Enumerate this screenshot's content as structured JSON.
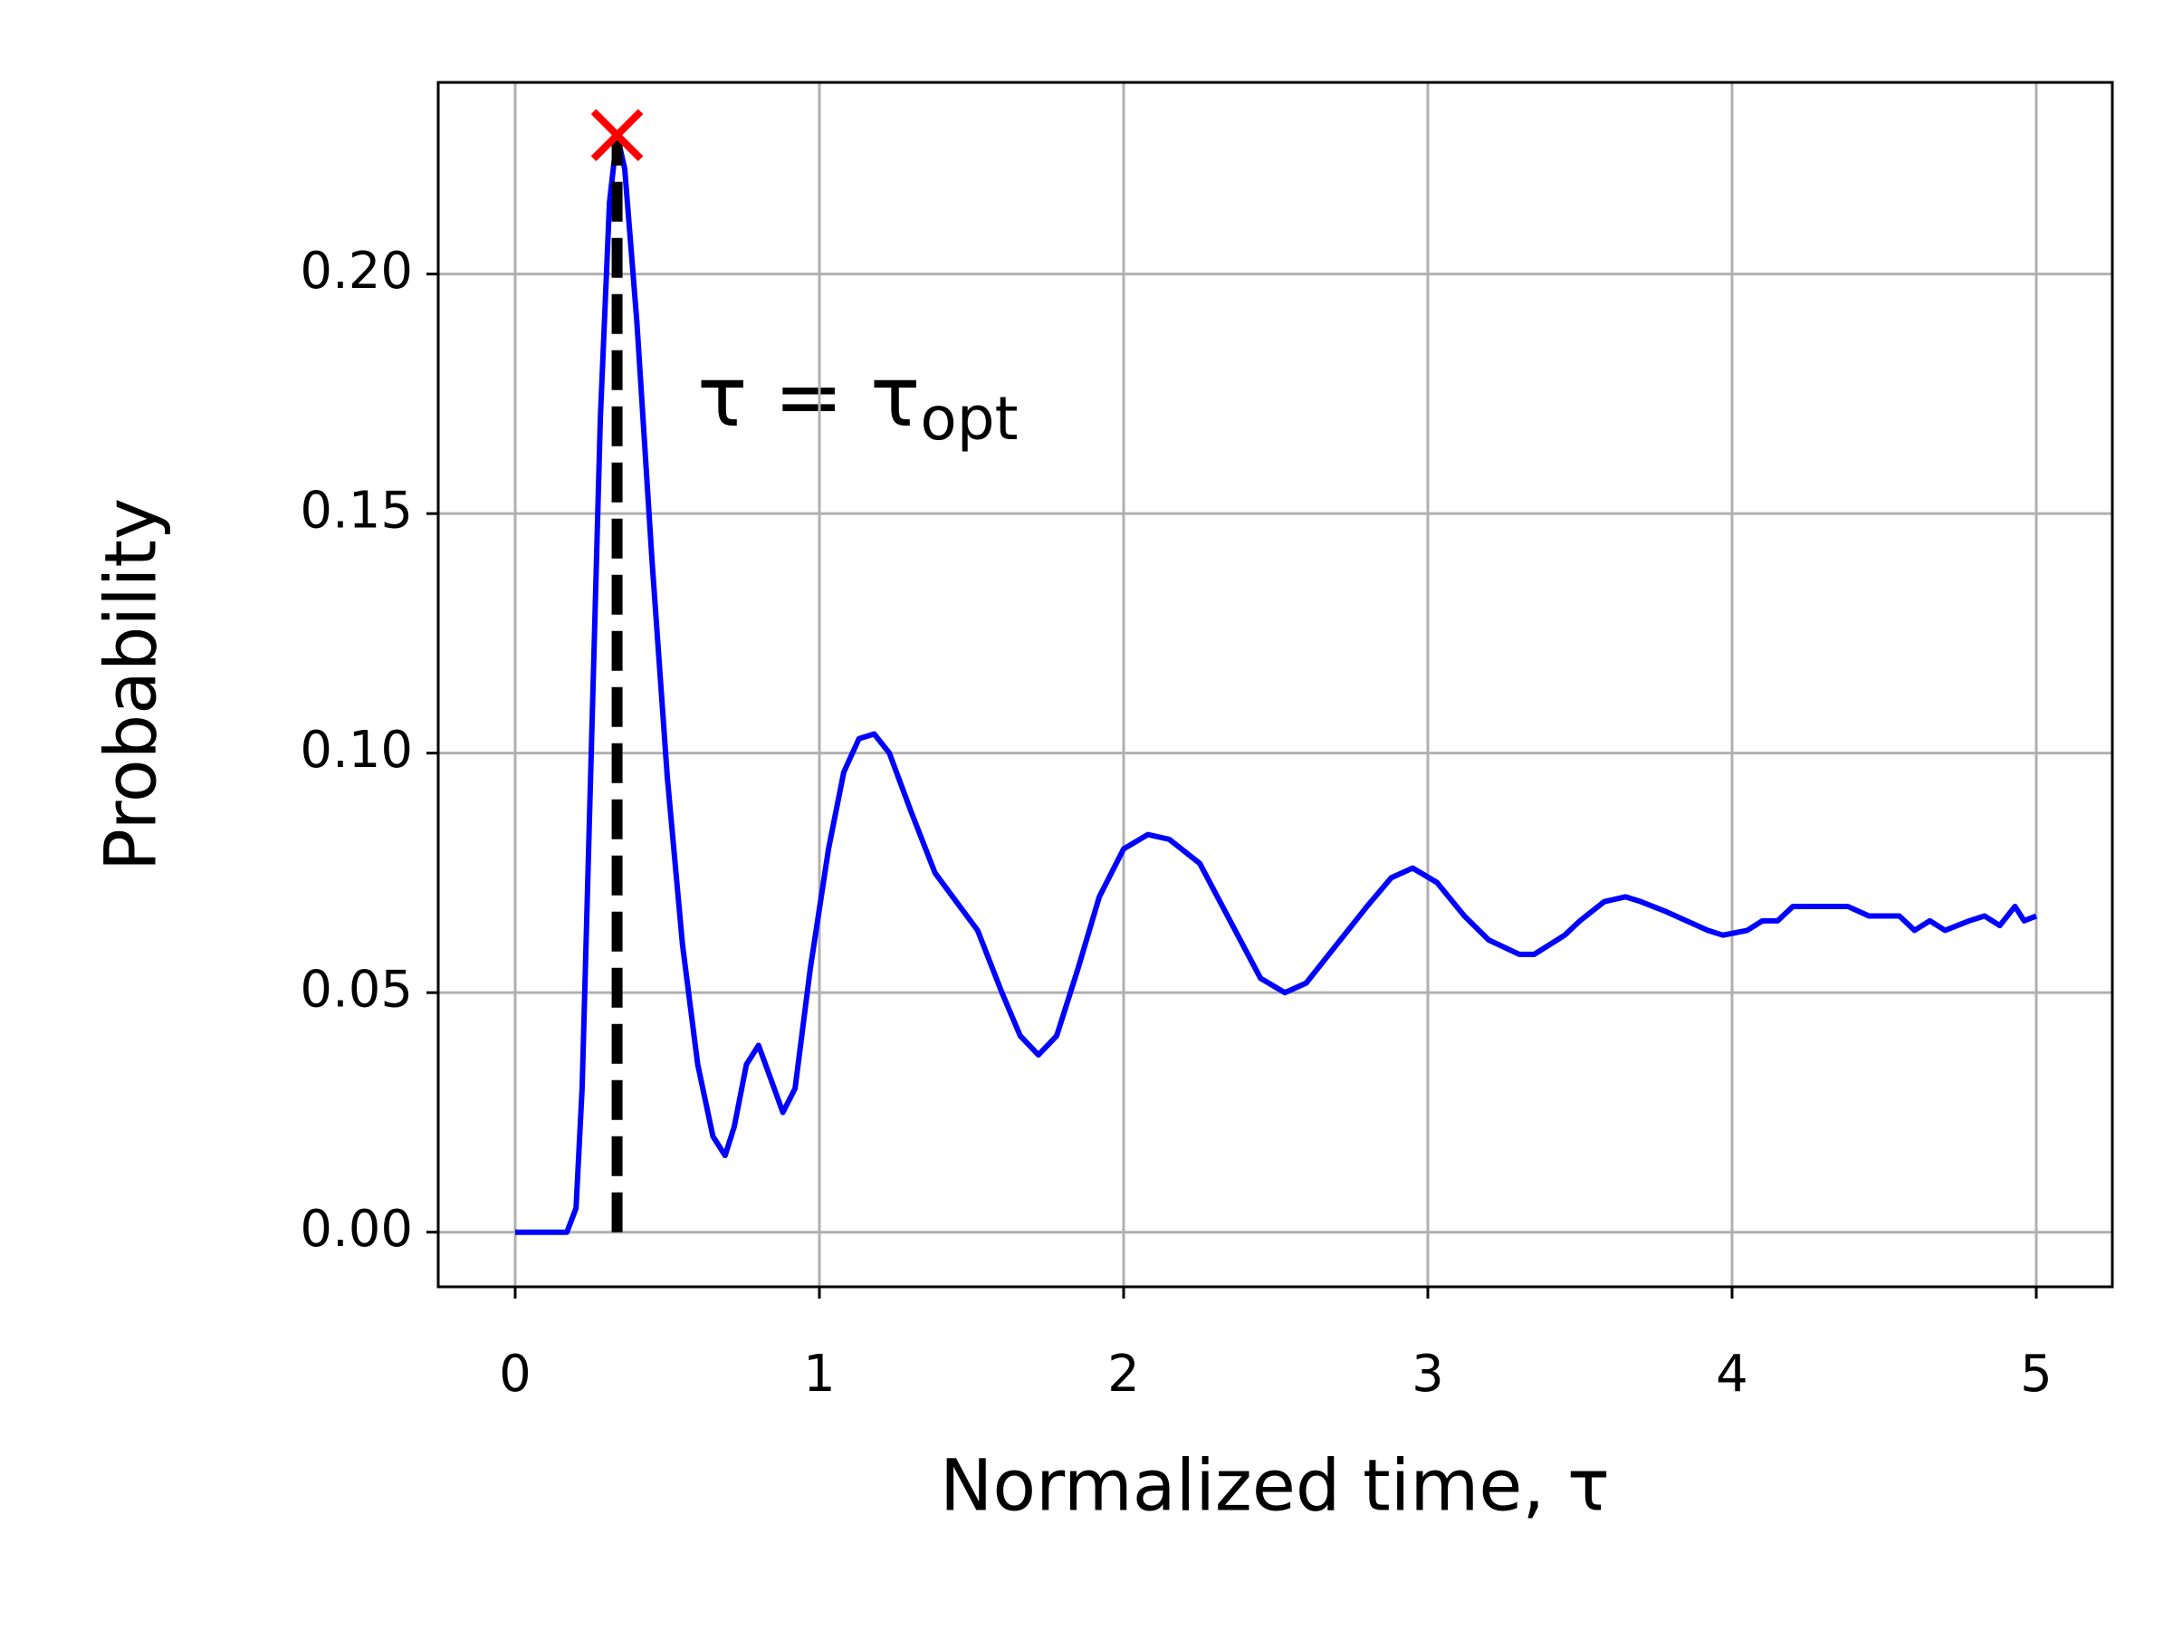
{
  "chart_data": {
    "type": "line",
    "xlabel": "Normalized time, τ",
    "ylabel": "Probability",
    "annotation": {
      "text": "τ = τ",
      "subscript": "opt"
    },
    "x": [
      0,
      0.1,
      0.17,
      0.2,
      0.22,
      0.25,
      0.28,
      0.31,
      0.335,
      0.36,
      0.4,
      0.45,
      0.5,
      0.55,
      0.6,
      0.65,
      0.69,
      0.72,
      0.76,
      0.8,
      0.84,
      0.88,
      0.92,
      0.97,
      1.03,
      1.08,
      1.13,
      1.18,
      1.23,
      1.3,
      1.38,
      1.45,
      1.52,
      1.6,
      1.66,
      1.72,
      1.78,
      1.85,
      1.92,
      2.0,
      2.08,
      2.15,
      2.25,
      2.35,
      2.45,
      2.53,
      2.6,
      2.7,
      2.8,
      2.88,
      2.95,
      3.03,
      3.12,
      3.2,
      3.3,
      3.35,
      3.45,
      3.5,
      3.58,
      3.65,
      3.7,
      3.78,
      3.85,
      3.92,
      3.97,
      4.05,
      4.1,
      4.15,
      4.2,
      4.3,
      4.38,
      4.45,
      4.55,
      4.6,
      4.65,
      4.7,
      4.78,
      4.83,
      4.88,
      4.93,
      4.96,
      5.0
    ],
    "values": [
      0,
      0,
      0,
      0.005,
      0.03,
      0.1,
      0.17,
      0.215,
      0.229,
      0.222,
      0.19,
      0.14,
      0.095,
      0.06,
      0.035,
      0.02,
      0.016,
      0.022,
      0.035,
      0.039,
      0.032,
      0.025,
      0.03,
      0.055,
      0.08,
      0.096,
      0.103,
      0.104,
      0.1,
      0.088,
      0.075,
      0.069,
      0.063,
      0.05,
      0.041,
      0.037,
      0.041,
      0.055,
      0.07,
      0.08,
      0.083,
      0.082,
      0.077,
      0.065,
      0.053,
      0.05,
      0.052,
      0.06,
      0.068,
      0.074,
      0.076,
      0.073,
      0.066,
      0.061,
      0.058,
      0.058,
      0.062,
      0.065,
      0.069,
      0.07,
      0.069,
      0.067,
      0.065,
      0.063,
      0.062,
      0.063,
      0.065,
      0.065,
      0.068,
      0.068,
      0.068,
      0.066,
      0.066,
      0.063,
      0.065,
      0.063,
      0.065,
      0.066,
      0.064,
      0.068,
      0.065,
      0.066
    ],
    "color": "#0000ff",
    "vline": {
      "x": 0.335,
      "ymax": 0.229,
      "color": "#000000"
    },
    "marker": {
      "x": 0.335,
      "y": 0.229,
      "color": "#ff0000"
    },
    "xlim": [
      -0.253,
      5.25
    ],
    "ylim": [
      -0.0114,
      0.24
    ],
    "xticks": [
      0,
      1,
      2,
      3,
      4,
      5
    ],
    "yticks": [
      {
        "value": 0,
        "label": "0.00"
      },
      {
        "value": 0.05,
        "label": "0.05"
      },
      {
        "value": 0.1,
        "label": "0.10"
      },
      {
        "value": 0.15,
        "label": "0.15"
      },
      {
        "value": 0.2,
        "label": "0.20"
      }
    ],
    "grid": true
  }
}
